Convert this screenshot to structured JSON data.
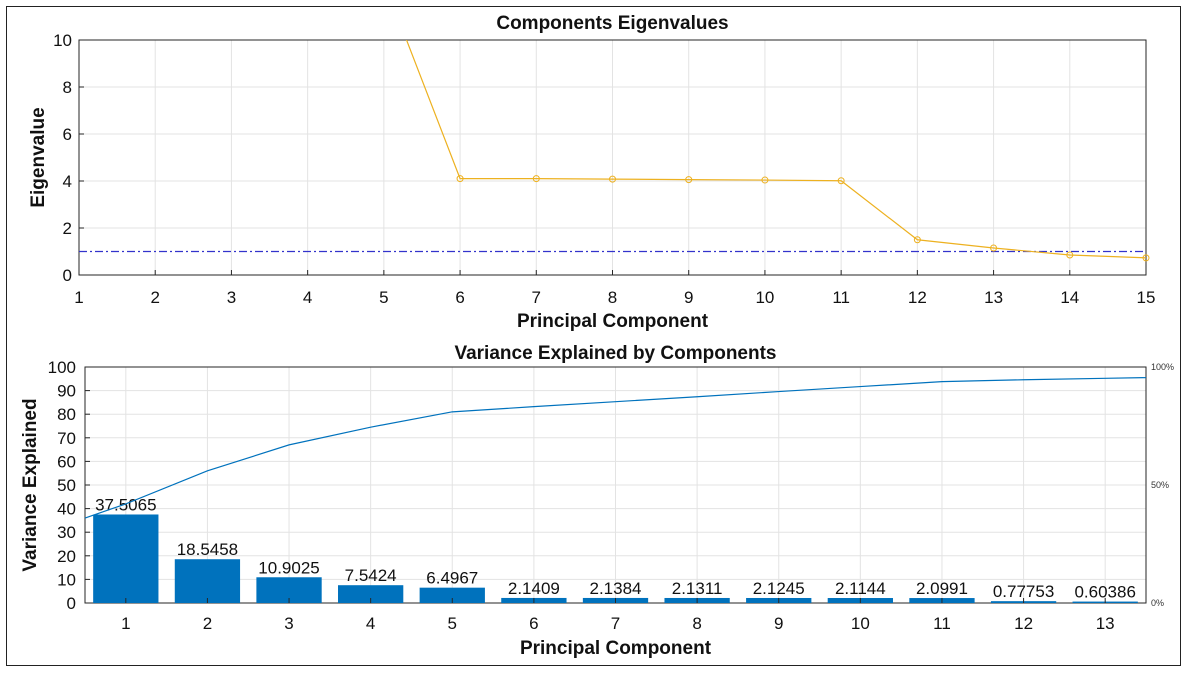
{
  "chart_data": [
    {
      "type": "line",
      "title": "Components Eigenvalues",
      "xlabel": "Principal Component",
      "ylabel": "Eigenvalue",
      "xlim": [
        1,
        15
      ],
      "ylim": [
        0,
        10
      ],
      "xticks": [
        "1",
        "2",
        "3",
        "4",
        "5",
        "6",
        "7",
        "8",
        "9",
        "10",
        "11",
        "12",
        "13",
        "14",
        "15"
      ],
      "yticks": [
        "0",
        "2",
        "4",
        "6",
        "8",
        "10"
      ],
      "grid": true,
      "series": [
        {
          "x": [
            5,
            6,
            7,
            8,
            9,
            10,
            11,
            12,
            13,
            14,
            15
          ],
          "y": [
            12.5,
            4.1,
            4.1,
            4.08,
            4.06,
            4.04,
            4.01,
            1.5,
            1.15,
            0.85,
            0.73
          ],
          "color": "#EDB120",
          "marker": "circle"
        }
      ],
      "reference_line": {
        "y": 1,
        "color": "#3333CC",
        "style": "dash-dot"
      }
    },
    {
      "type": "bar",
      "title": "Variance Explained by Components",
      "xlabel": "Principal Component",
      "ylabel": "Variance Explained",
      "categories": [
        "1",
        "2",
        "3",
        "4",
        "5",
        "6",
        "7",
        "8",
        "9",
        "10",
        "11",
        "12",
        "13"
      ],
      "values": [
        37.5065,
        18.5458,
        10.9025,
        7.5424,
        6.4967,
        2.1409,
        2.1384,
        2.1311,
        2.1245,
        2.1144,
        2.0991,
        0.77753,
        0.60386
      ],
      "data_labels": [
        "37.5065",
        "18.5458",
        "10.9025",
        "7.5424",
        "6.4967",
        "2.1409",
        "2.1384",
        "2.1311",
        "2.1245",
        "2.1144",
        "2.0991",
        "0.77753",
        "0.60386"
      ],
      "ylim": [
        0,
        100
      ],
      "yticks": [
        "0",
        "10",
        "20",
        "30",
        "40",
        "50",
        "60",
        "70",
        "80",
        "90",
        "100"
      ],
      "bar_color": "#0072BD",
      "cumulative_line": {
        "x": [
          0.5,
          1,
          2,
          3,
          4,
          5,
          6,
          7,
          8,
          9,
          10,
          11,
          12,
          13,
          13.5
        ],
        "y": [
          36,
          42,
          56.0,
          67.0,
          74.5,
          81.0,
          83.2,
          85.3,
          87.4,
          89.6,
          91.7,
          93.8,
          94.6,
          95.2,
          95.5
        ],
        "color": "#0072BD"
      },
      "right_axis_ticks": [
        "0%",
        "50%",
        "100%"
      ],
      "grid": true
    }
  ]
}
